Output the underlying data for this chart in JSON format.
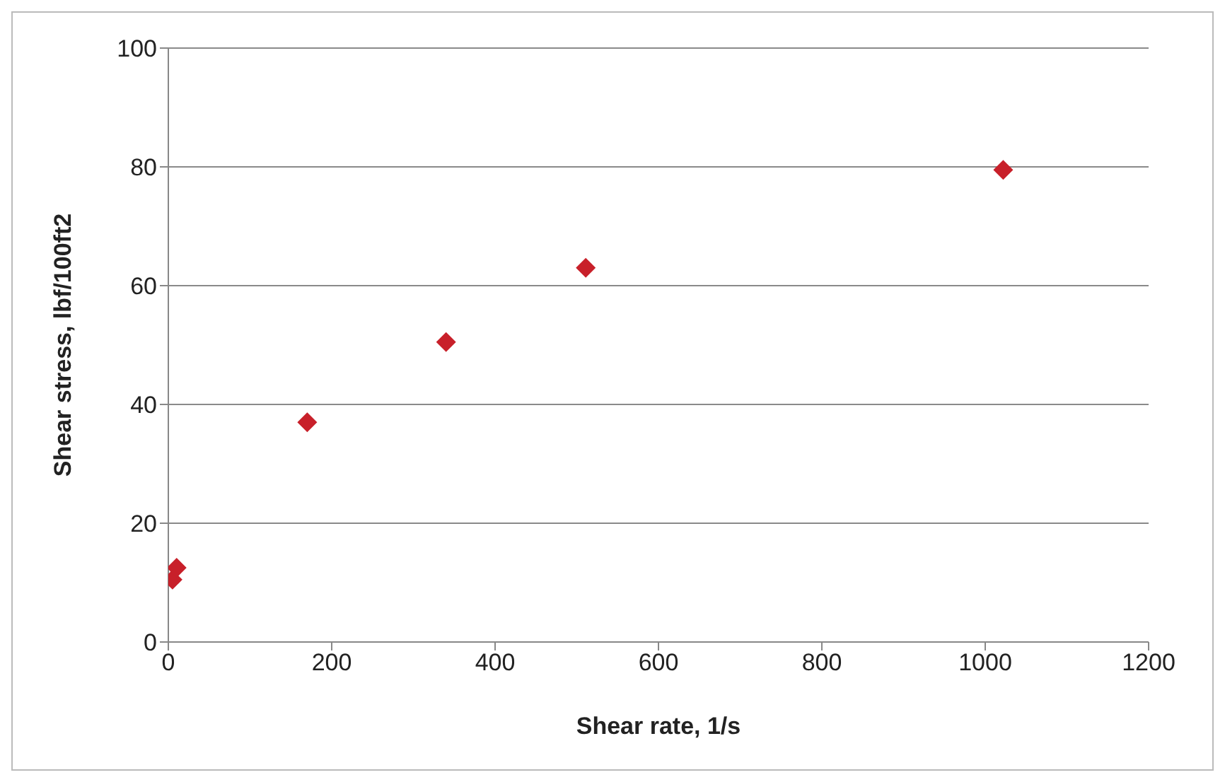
{
  "chart_data": {
    "type": "scatter",
    "xlabel": "Shear rate, 1/s",
    "ylabel": "Shear stress, lbf/100ft2",
    "x": [
      5.11,
      10.2,
      170,
      340,
      511,
      1022
    ],
    "values": [
      10.5,
      12.5,
      37,
      50.5,
      63,
      79.5
    ],
    "color": "#c8202a",
    "marker": "diamond",
    "xlim": [
      0,
      1200
    ],
    "xticks": [
      0,
      200,
      400,
      600,
      800,
      1000,
      1200
    ],
    "ylim": [
      0,
      100
    ],
    "yticks": [
      0,
      20,
      40,
      60,
      80,
      100
    ],
    "grid": "y"
  }
}
